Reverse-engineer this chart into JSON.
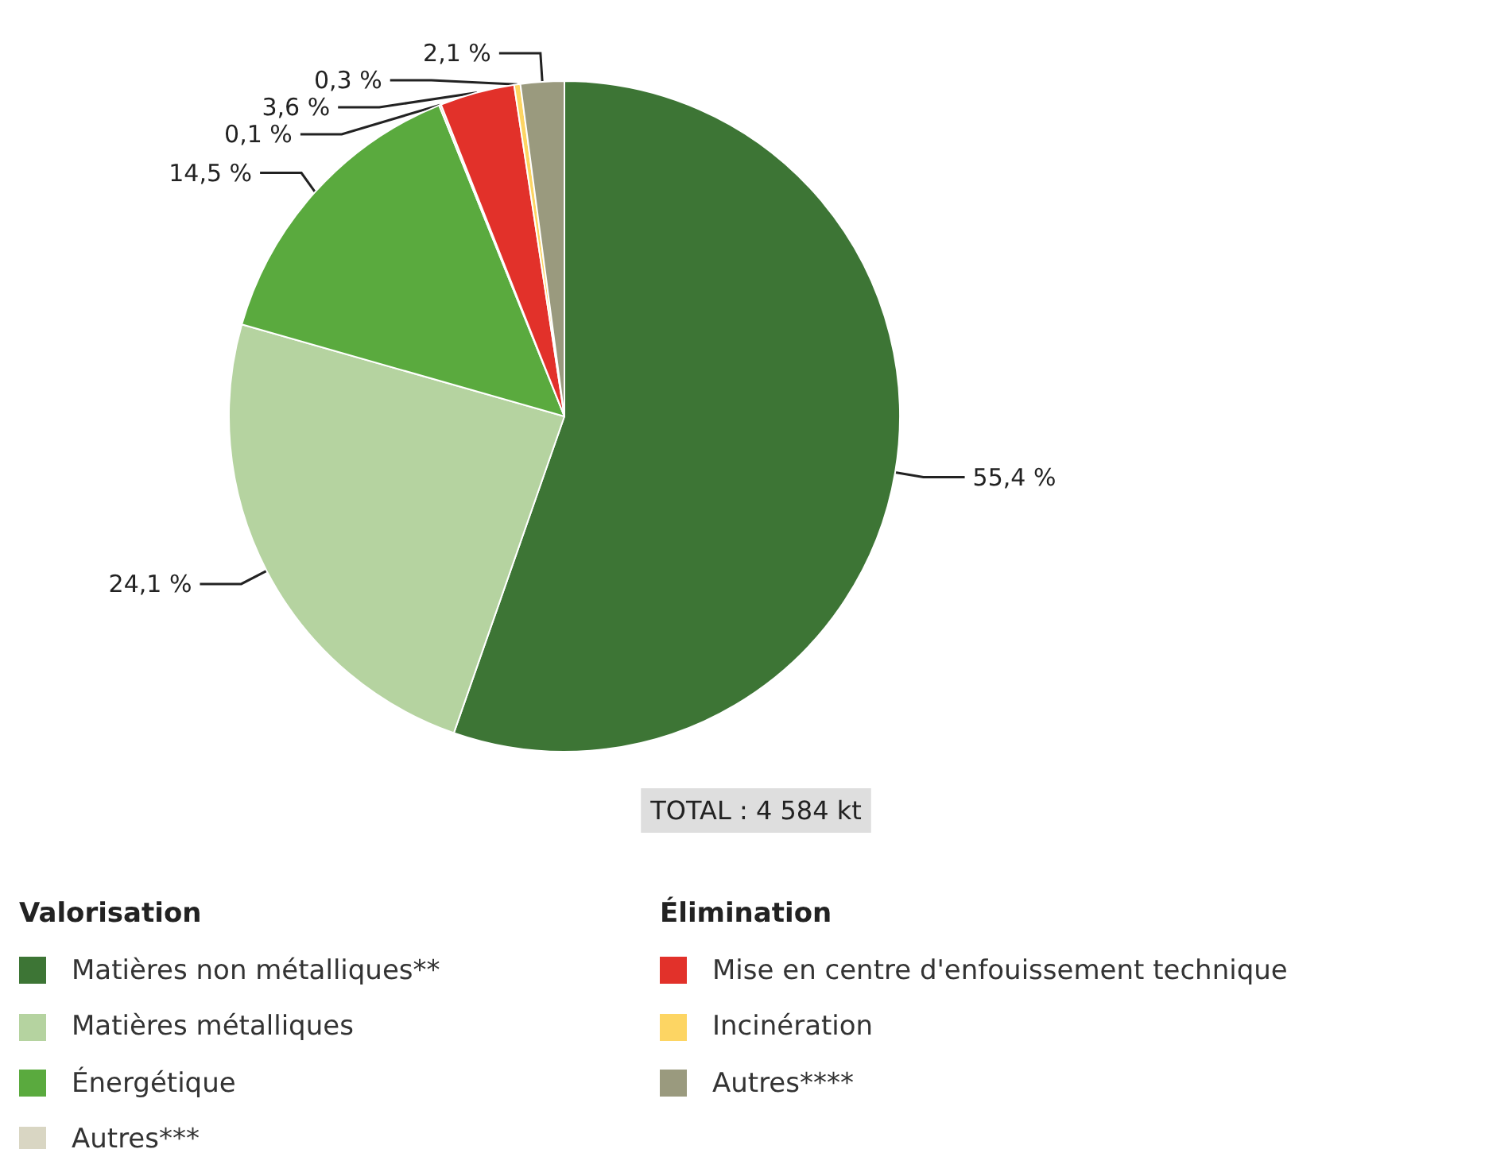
{
  "chart_data": {
    "type": "pie",
    "categories": [
      "Matières non métalliques**",
      "Matières métalliques",
      "Énergétique",
      "Autres***",
      "Mise en centre d'enfouissement technique",
      "Incinération",
      "Autres****"
    ],
    "values": [
      55.4,
      24.1,
      14.5,
      0.1,
      3.6,
      0.3,
      2.1
    ],
    "colors": [
      "#3d7535",
      "#b5d3a0",
      "#5aaa3e",
      "#d9d6c3",
      "#e2312a",
      "#fdd563",
      "#9a9a7e"
    ],
    "value_labels": [
      "55,4 %",
      "24,1 %",
      "14,5 %",
      "0,1 %",
      "3,6 %",
      "0,3 %",
      "2,1 %"
    ],
    "annotations": [
      "TOTAL : 4 584 kt",
      "Valorisation",
      "Élimination"
    ],
    "legend": "bottom"
  }
}
